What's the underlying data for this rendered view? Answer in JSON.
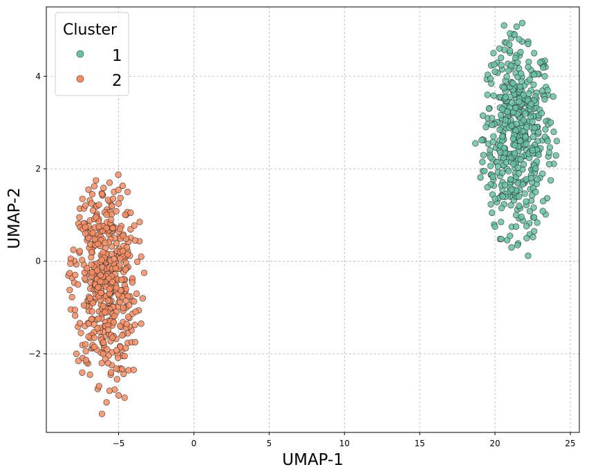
{
  "chart_data": {
    "type": "scatter",
    "xlabel": "UMAP-1",
    "ylabel": "UMAP-2",
    "xlim": [
      -9.8,
      25.6
    ],
    "ylim": [
      -3.7,
      5.5
    ],
    "xticks": [
      -5,
      0,
      5,
      10,
      15,
      20,
      25
    ],
    "xtick_labels": [
      "−5",
      "0",
      "5",
      "10",
      "15",
      "20",
      "25"
    ],
    "yticks": [
      -2,
      0,
      2,
      4
    ],
    "ytick_labels": [
      "−2",
      "0",
      "2",
      "4"
    ],
    "grid": true,
    "legend": {
      "title": "Cluster",
      "placement": "top-left"
    },
    "series": [
      {
        "name": "1",
        "color": "#66c2a5",
        "cluster": {
          "x_center": 21.5,
          "y_center": 2.7,
          "x_range": [
            18.7,
            24.1
          ],
          "y_range": [
            0.1,
            5.1
          ],
          "approx_points": 500
        },
        "points": [
          [
            20.6,
            5.1
          ],
          [
            21.3,
            4.9
          ],
          [
            21.6,
            4.8
          ],
          [
            22.2,
            4.7
          ],
          [
            20.3,
            4.6
          ],
          [
            21.0,
            4.55
          ],
          [
            22.6,
            4.5
          ],
          [
            19.9,
            4.5
          ],
          [
            20.4,
            4.4
          ],
          [
            23.0,
            4.3
          ],
          [
            21.5,
            4.3
          ],
          [
            22.2,
            4.2
          ],
          [
            20.0,
            4.1
          ],
          [
            23.3,
            4.0
          ],
          [
            19.7,
            3.95
          ],
          [
            21.2,
            3.85
          ],
          [
            23.5,
            3.7
          ],
          [
            20.6,
            3.75
          ],
          [
            19.5,
            3.6
          ],
          [
            23.3,
            3.5
          ],
          [
            21.6,
            3.45
          ],
          [
            19.6,
            3.3
          ],
          [
            22.4,
            3.4
          ],
          [
            23.1,
            3.2
          ],
          [
            19.2,
            3.15
          ],
          [
            20.7,
            3.05
          ],
          [
            23.7,
            3.0
          ],
          [
            19.4,
            2.9
          ],
          [
            22.1,
            2.9
          ],
          [
            23.9,
            2.8
          ],
          [
            19.9,
            2.7
          ],
          [
            21.2,
            2.65
          ],
          [
            18.7,
            2.55
          ],
          [
            23.5,
            2.6
          ],
          [
            24.1,
            2.6
          ],
          [
            20.6,
            2.45
          ],
          [
            22.5,
            2.4
          ],
          [
            19.7,
            2.25
          ],
          [
            21.7,
            2.2
          ],
          [
            23.6,
            2.1
          ],
          [
            19.3,
            1.95
          ],
          [
            20.9,
            1.95
          ],
          [
            22.4,
            1.8
          ],
          [
            23.7,
            1.75
          ],
          [
            19.5,
            1.6
          ],
          [
            21.1,
            1.55
          ],
          [
            22.7,
            1.5
          ],
          [
            20.0,
            1.35
          ],
          [
            23.2,
            1.3
          ],
          [
            21.6,
            1.2
          ],
          [
            19.8,
            1.05
          ],
          [
            22.6,
            0.95
          ],
          [
            20.4,
            0.85
          ],
          [
            21.4,
            0.75
          ],
          [
            20.0,
            0.75
          ],
          [
            22.6,
            0.65
          ],
          [
            21.0,
            0.55
          ],
          [
            22.1,
            0.5
          ],
          [
            21.5,
            0.35
          ],
          [
            21.1,
            0.3
          ],
          [
            22.2,
            0.12
          ],
          [
            20.7,
            3.55
          ],
          [
            21.9,
            3.05
          ],
          [
            20.2,
            2.05
          ],
          [
            22.9,
            2.3
          ],
          [
            21.4,
            1.0
          ]
        ]
      },
      {
        "name": "2",
        "color": "#fc8d62",
        "cluster": {
          "x_center": -5.9,
          "y_center": -0.4,
          "x_range": [
            -8.2,
            -3.2
          ],
          "y_range": [
            -3.3,
            1.75
          ],
          "approx_points": 500
        },
        "points": [
          [
            -6.5,
            1.75
          ],
          [
            -5.6,
            1.7
          ],
          [
            -7.0,
            1.55
          ],
          [
            -4.4,
            1.5
          ],
          [
            -6.1,
            1.45
          ],
          [
            -7.4,
            1.35
          ],
          [
            -5.0,
            1.25
          ],
          [
            -6.7,
            1.1
          ],
          [
            -4.2,
            1.05
          ],
          [
            -7.6,
            0.95
          ],
          [
            -5.5,
            0.9
          ],
          [
            -3.6,
            0.85
          ],
          [
            -6.3,
            0.75
          ],
          [
            -7.2,
            0.6
          ],
          [
            -4.7,
            0.55
          ],
          [
            -3.9,
            0.45
          ],
          [
            -5.9,
            0.4
          ],
          [
            -8.0,
            0.25
          ],
          [
            -6.8,
            0.2
          ],
          [
            -4.4,
            0.15
          ],
          [
            -3.5,
            0.1
          ],
          [
            -5.3,
            0.05
          ],
          [
            -8.2,
            -0.05
          ],
          [
            -7.1,
            -0.15
          ],
          [
            -3.3,
            -0.25
          ],
          [
            -6.2,
            -0.3
          ],
          [
            -4.8,
            -0.4
          ],
          [
            -7.7,
            -0.5
          ],
          [
            -5.6,
            -0.6
          ],
          [
            -3.8,
            -0.7
          ],
          [
            -6.9,
            -0.8
          ],
          [
            -3.4,
            -0.8
          ],
          [
            -4.3,
            -0.95
          ],
          [
            -7.9,
            -1.05
          ],
          [
            -5.9,
            -1.1
          ],
          [
            -6.8,
            -1.25
          ],
          [
            -3.5,
            -1.35
          ],
          [
            -4.9,
            -1.4
          ],
          [
            -7.5,
            -1.55
          ],
          [
            -5.4,
            -1.65
          ],
          [
            -3.9,
            -1.75
          ],
          [
            -6.6,
            -1.85
          ],
          [
            -7.8,
            -2.0
          ],
          [
            -4.6,
            -2.05
          ],
          [
            -5.7,
            -2.2
          ],
          [
            -4.0,
            -2.35
          ],
          [
            -6.9,
            -2.45
          ],
          [
            -5.1,
            -2.55
          ],
          [
            -6.3,
            -2.7
          ],
          [
            -5.6,
            -2.8
          ],
          [
            -4.6,
            -2.95
          ],
          [
            -5.8,
            -3.05
          ],
          [
            -5.0,
            -2.9
          ],
          [
            -6.1,
            -3.3
          ],
          [
            -6.5,
            0.95
          ],
          [
            -5.2,
            -0.15
          ],
          [
            -6.4,
            -1.45
          ],
          [
            -4.9,
            0.7
          ],
          [
            -7.3,
            -0.95
          ],
          [
            -5.5,
            -2.4
          ]
        ]
      }
    ]
  }
}
